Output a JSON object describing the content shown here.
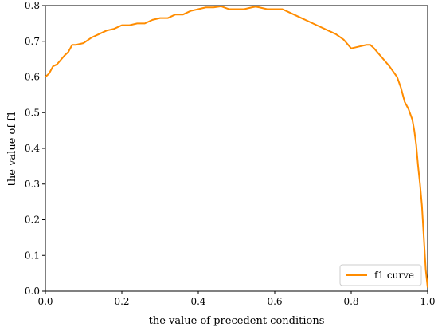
{
  "chart_data": {
    "type": "line",
    "title": "",
    "xlabel": "the value of precedent conditions",
    "ylabel": "the value of f1",
    "xlim": [
      0.0,
      1.0
    ],
    "ylim": [
      0.0,
      0.8
    ],
    "x_ticks": [
      "0.0",
      "0.2",
      "0.4",
      "0.6",
      "0.8",
      "1.0"
    ],
    "y_ticks": [
      "0.0",
      "0.1",
      "0.2",
      "0.3",
      "0.4",
      "0.5",
      "0.6",
      "0.7",
      "0.8"
    ],
    "grid": false,
    "legend_position": "bottom-right",
    "series": [
      {
        "name": "f1 curve",
        "color": "#ff8c00",
        "x": [
          0.0,
          0.01,
          0.02,
          0.03,
          0.05,
          0.06,
          0.07,
          0.08,
          0.1,
          0.12,
          0.14,
          0.16,
          0.18,
          0.2,
          0.22,
          0.24,
          0.26,
          0.28,
          0.3,
          0.32,
          0.34,
          0.36,
          0.38,
          0.4,
          0.42,
          0.44,
          0.46,
          0.48,
          0.5,
          0.52,
          0.54,
          0.55,
          0.56,
          0.58,
          0.6,
          0.62,
          0.64,
          0.66,
          0.68,
          0.7,
          0.72,
          0.74,
          0.76,
          0.78,
          0.8,
          0.82,
          0.84,
          0.85,
          0.86,
          0.88,
          0.9,
          0.92,
          0.93,
          0.94,
          0.95,
          0.96,
          0.965,
          0.97,
          0.975,
          0.98,
          0.985,
          0.99,
          0.995,
          1.0
        ],
        "y": [
          0.6,
          0.61,
          0.63,
          0.635,
          0.66,
          0.67,
          0.69,
          0.69,
          0.695,
          0.71,
          0.72,
          0.73,
          0.735,
          0.745,
          0.745,
          0.75,
          0.75,
          0.76,
          0.765,
          0.765,
          0.775,
          0.775,
          0.785,
          0.79,
          0.795,
          0.795,
          0.798,
          0.79,
          0.79,
          0.79,
          0.795,
          0.797,
          0.795,
          0.79,
          0.79,
          0.79,
          0.78,
          0.77,
          0.76,
          0.75,
          0.74,
          0.73,
          0.72,
          0.705,
          0.68,
          0.685,
          0.69,
          0.69,
          0.68,
          0.655,
          0.63,
          0.6,
          0.57,
          0.53,
          0.51,
          0.48,
          0.45,
          0.41,
          0.35,
          0.3,
          0.24,
          0.15,
          0.06,
          0.01
        ]
      }
    ]
  }
}
